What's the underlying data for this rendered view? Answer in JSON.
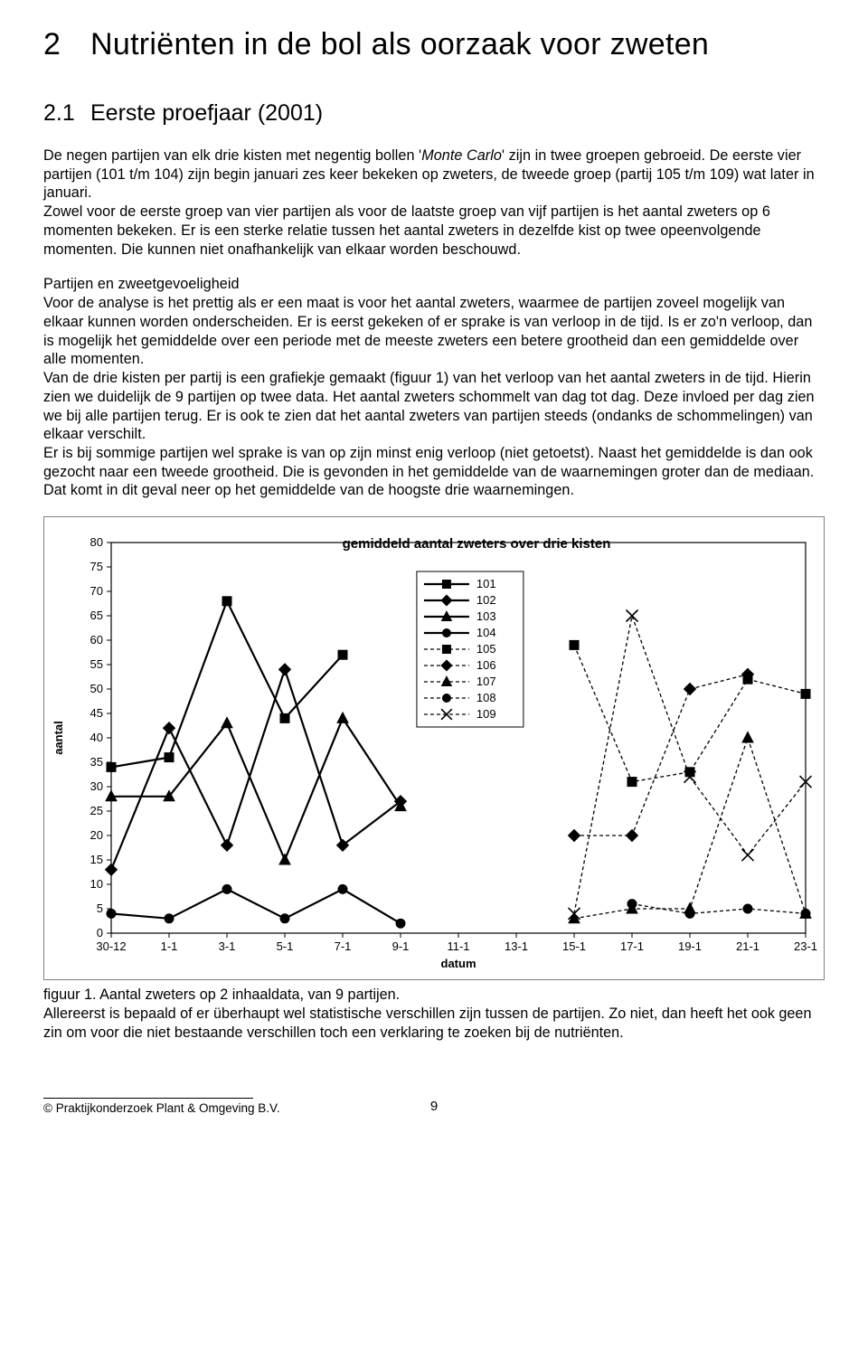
{
  "heading1": {
    "num": "2",
    "title": "Nutriënten in de bol als oorzaak voor zweten"
  },
  "heading2": {
    "num": "2.1",
    "title": "Eerste proefjaar (2001)"
  },
  "para1_a": "De negen partijen van elk drie kisten met negentig bollen '",
  "para1_italic": "Monte Carlo",
  "para1_b": "' zijn in twee groepen gebroeid. De eerste vier partijen (101 t/m 104) zijn begin januari zes keer bekeken op zweters, de tweede groep (partij 105 t/m 109) wat later in januari.",
  "para1_c": " Zowel voor de eerste groep van vier partijen als voor de laatste groep van vijf partijen is het aantal zweters op 6 momenten bekeken. Er is een sterke relatie tussen het aantal zweters in dezelfde kist op twee opeenvolgende momenten. Die kunnen niet onafhankelijk van elkaar worden beschouwd.",
  "para2": "Partijen en zweetgevoeligheid\nVoor de analyse is het prettig als er een maat is voor het aantal zweters, waarmee de partijen zoveel mogelijk van elkaar kunnen worden onderscheiden. Er is eerst gekeken of er sprake is van verloop in de tijd. Is er zo'n verloop, dan is mogelijk het gemiddelde over een periode met de meeste zweters een betere grootheid dan een gemiddelde over alle momenten.\nVan de drie kisten per partij is een grafiekje gemaakt (figuur 1) van het verloop van het aantal zweters in de tijd. Hierin zien we duidelijk de 9 partijen op twee data. Het aantal zweters schommelt van dag tot dag. Deze invloed per dag zien we bij alle partijen terug. Er is ook te zien dat het aantal zweters van partijen steeds (ondanks de schommelingen) van elkaar verschilt.\nEr is bij sommige partijen wel sprake is van op zijn minst enig verloop (niet getoetst). Naast het gemiddelde is dan ook gezocht naar een tweede grootheid. Die is gevonden in het gemiddelde van de waarnemingen groter dan de mediaan. Dat komt in dit geval neer op het gemiddelde van de hoogste drie waarnemingen.",
  "caption": "figuur 1. Aantal zweters op 2 inhaaldata, van 9 partijen.\nAllereerst is bepaald of er überhaupt wel statistische verschillen zijn tussen de partijen. Zo niet, dan heeft het ook geen zin om voor die niet bestaande verschillen toch een verklaring te zoeken bij de nutriënten.",
  "footer": {
    "copyright": "© Praktijkonderzoek Plant & Omgeving B.V.",
    "page": "9"
  },
  "chart": {
    "type": "line",
    "title": "gemiddeld aantal zweters over drie kisten",
    "title_fontsize": 15,
    "title_weight": "bold",
    "xlabel": "datum",
    "ylabel": "aantal",
    "label_fontsize": 13,
    "label_weight": "bold",
    "tick_fontsize": 13,
    "background_color": "#ffffff",
    "border_color": "#808080",
    "axis_color": "#000000",
    "line_color": "#000000",
    "line_width": 2.2,
    "dash_line_width": 1.3,
    "dash_pattern": "4 3",
    "marker_size": 5,
    "ylim": [
      0,
      80
    ],
    "ytick_step": 5,
    "x_categories": [
      "30-12",
      "1-1",
      "3-1",
      "5-1",
      "7-1",
      "9-1",
      "11-1",
      "13-1",
      "15-1",
      "17-1",
      "19-1",
      "21-1",
      "23-1"
    ],
    "legend": {
      "items": [
        {
          "label": "101",
          "marker": "square",
          "dashed": false
        },
        {
          "label": "102",
          "marker": "diamond",
          "dashed": false
        },
        {
          "label": "103",
          "marker": "triangle",
          "dashed": false
        },
        {
          "label": "104",
          "marker": "circle",
          "dashed": false
        },
        {
          "label": "105",
          "marker": "square",
          "dashed": true
        },
        {
          "label": "106",
          "marker": "diamond",
          "dashed": true
        },
        {
          "label": "107",
          "marker": "triangle",
          "dashed": true
        },
        {
          "label": "108",
          "marker": "circle",
          "dashed": true
        },
        {
          "label": "109",
          "marker": "x",
          "dashed": true
        }
      ],
      "fontsize": 13,
      "border_color": "#000000"
    },
    "series": [
      {
        "id": "101",
        "marker": "square",
        "dashed": false,
        "points": [
          [
            0,
            34
          ],
          [
            1,
            36
          ],
          [
            2,
            68
          ],
          [
            3,
            44
          ],
          [
            4,
            57
          ]
        ]
      },
      {
        "id": "102",
        "marker": "diamond",
        "dashed": false,
        "points": [
          [
            0,
            13
          ],
          [
            1,
            42
          ],
          [
            2,
            18
          ],
          [
            3,
            54
          ],
          [
            4,
            18
          ],
          [
            5,
            27
          ]
        ]
      },
      {
        "id": "103",
        "marker": "triangle",
        "dashed": false,
        "points": [
          [
            0,
            28
          ],
          [
            1,
            28
          ],
          [
            2,
            43
          ],
          [
            3,
            15
          ],
          [
            4,
            44
          ],
          [
            5,
            26
          ]
        ]
      },
      {
        "id": "104",
        "marker": "circle",
        "dashed": false,
        "points": [
          [
            0,
            4
          ],
          [
            1,
            3
          ],
          [
            2,
            9
          ],
          [
            3,
            3
          ],
          [
            4,
            9
          ],
          [
            5,
            2
          ]
        ]
      },
      {
        "id": "106",
        "marker": "diamond",
        "dashed": true,
        "points": [
          [
            8,
            20
          ],
          [
            9,
            20
          ],
          [
            10,
            50
          ],
          [
            11,
            53
          ]
        ]
      },
      {
        "id": "105",
        "marker": "square",
        "dashed": true,
        "points": [
          [
            8,
            59
          ],
          [
            9,
            31
          ],
          [
            10,
            33
          ],
          [
            11,
            52
          ],
          [
            12,
            49
          ]
        ]
      },
      {
        "id": "107",
        "marker": "triangle",
        "dashed": true,
        "points": [
          [
            8,
            3
          ],
          [
            9,
            5
          ],
          [
            10,
            5
          ],
          [
            11,
            40
          ],
          [
            12,
            4
          ]
        ]
      },
      {
        "id": "108",
        "marker": "circle",
        "dashed": true,
        "points": [
          [
            9,
            6
          ],
          [
            10,
            4
          ],
          [
            11,
            5
          ],
          [
            12,
            4
          ]
        ]
      },
      {
        "id": "109",
        "marker": "x",
        "dashed": true,
        "points": [
          [
            8,
            4
          ],
          [
            9,
            65
          ],
          [
            10,
            32
          ],
          [
            11,
            16
          ],
          [
            12,
            31
          ]
        ]
      }
    ]
  }
}
